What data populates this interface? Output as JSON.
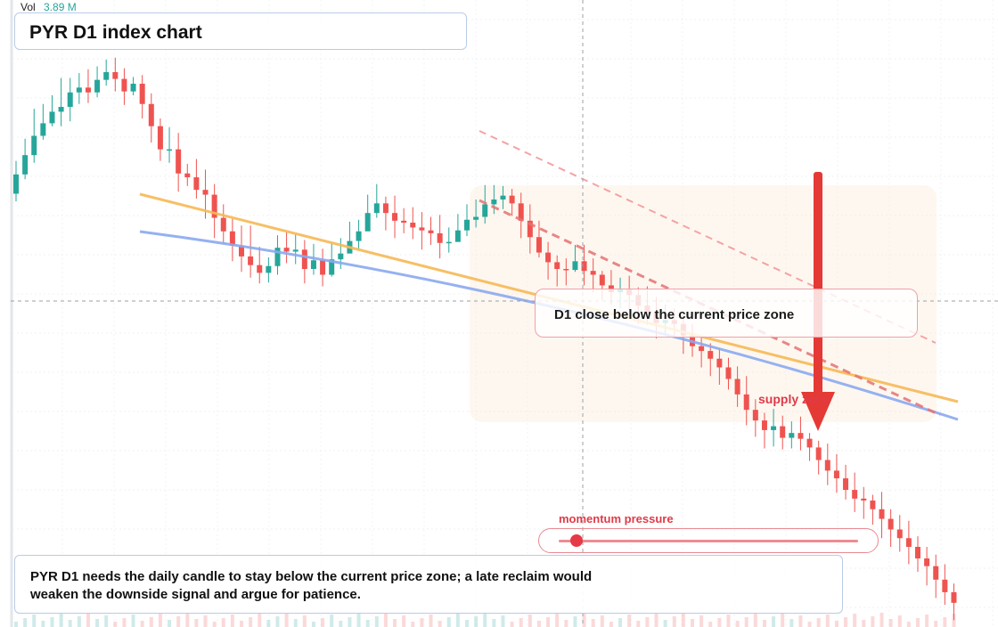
{
  "header": {
    "vol_label": "Vol",
    "vol_value": "3.89 M"
  },
  "title": "PYR D1 index chart",
  "annotations": {
    "callout": "D1 close below the current price zone",
    "supply_label": "supply zone",
    "momentum_label": "momentum pressure",
    "momentum_level": 0.06,
    "note": "PYR D1 needs the daily candle to stay below the current price zone; a late reclaim would weaken the downside signal and argue for patience."
  },
  "colors": {
    "up": "#26a69a",
    "down": "#ef5350",
    "trend_orange": "#f7b955",
    "trend_blue": "#8aa8f0",
    "channel_red": "#e57373",
    "arrow_red": "#e53935",
    "supply_zone": "#fdebd8"
  },
  "chart_data": {
    "type": "candlestick",
    "title": "PYR D1 index chart",
    "timeframe": "D1",
    "symbol": "PYR",
    "volume_readout": "3.89 M",
    "grid": true,
    "crosshair": true,
    "candles": [
      [
        100.0,
        102.0,
        103.4,
        99.2
      ],
      [
        102.0,
        104.0,
        105.7,
        101.5
      ],
      [
        104.0,
        106.0,
        108.8,
        103.2
      ],
      [
        106.0,
        107.3,
        109.3,
        105.6
      ],
      [
        107.3,
        108.5,
        110.2,
        107.0
      ],
      [
        108.5,
        109.0,
        112.0,
        107.0
      ],
      [
        109.0,
        110.5,
        112.0,
        107.5
      ],
      [
        110.5,
        111.0,
        112.5,
        109.3
      ],
      [
        111.0,
        110.5,
        112.9,
        109.4
      ],
      [
        110.5,
        111.8,
        113.2,
        110.0
      ],
      [
        111.8,
        112.6,
        113.9,
        111.2
      ],
      [
        112.6,
        111.9,
        114.1,
        110.6
      ],
      [
        111.9,
        110.6,
        113.0,
        109.2
      ],
      [
        110.6,
        111.4,
        112.1,
        110.2
      ],
      [
        111.4,
        109.3,
        112.3,
        107.8
      ],
      [
        109.3,
        107.0,
        110.4,
        105.3
      ],
      [
        107.0,
        104.6,
        107.8,
        103.4
      ],
      [
        104.6,
        104.6,
        106.9,
        103.2
      ],
      [
        104.6,
        102.1,
        106.3,
        100.2
      ],
      [
        102.1,
        101.7,
        103.1,
        100.8
      ],
      [
        101.7,
        100.4,
        103.6,
        99.5
      ],
      [
        100.4,
        99.9,
        102.5,
        97.4
      ],
      [
        99.9,
        97.5,
        101.0,
        95.4
      ],
      [
        97.5,
        96.1,
        98.9,
        94.8
      ],
      [
        96.1,
        94.6,
        97.4,
        93.0
      ],
      [
        94.6,
        93.5,
        96.7,
        91.9
      ],
      [
        93.5,
        92.6,
        96.7,
        91.3
      ],
      [
        92.6,
        91.8,
        94.5,
        90.7
      ],
      [
        91.8,
        92.5,
        93.4,
        90.8
      ],
      [
        92.5,
        94.4,
        95.7,
        91.6
      ],
      [
        94.4,
        94.0,
        96.0,
        92.8
      ],
      [
        94.0,
        94.2,
        95.8,
        92.7
      ],
      [
        94.2,
        92.2,
        95.2,
        90.7
      ],
      [
        92.2,
        93.1,
        94.8,
        91.6
      ],
      [
        93.1,
        91.6,
        94.3,
        90.4
      ],
      [
        91.6,
        93.2,
        94.9,
        91.4
      ],
      [
        93.2,
        93.8,
        95.4,
        92.2
      ],
      [
        93.8,
        95.1,
        97.1,
        93.9
      ],
      [
        95.1,
        96.1,
        97.3,
        94.2
      ],
      [
        96.1,
        98.0,
        99.9,
        96.5
      ],
      [
        98.0,
        99.0,
        101.0,
        97.5
      ],
      [
        99.0,
        98.0,
        99.7,
        96.2
      ],
      [
        98.0,
        97.2,
        99.8,
        95.4
      ],
      [
        97.2,
        97.0,
        98.5,
        95.9
      ],
      [
        97.0,
        96.5,
        98.6,
        95.3
      ],
      [
        96.5,
        96.2,
        98.1,
        94.2
      ],
      [
        96.2,
        95.9,
        97.6,
        94.7
      ],
      [
        95.9,
        94.9,
        97.8,
        93.3
      ],
      [
        94.9,
        95.0,
        96.5,
        93.9
      ],
      [
        95.0,
        96.2,
        97.9,
        95.1
      ],
      [
        96.2,
        97.3,
        98.9,
        95.6
      ],
      [
        97.3,
        97.6,
        99.4,
        96.5
      ],
      [
        97.6,
        98.9,
        100.9,
        96.9
      ],
      [
        98.9,
        99.4,
        100.9,
        97.9
      ],
      [
        99.4,
        99.8,
        100.8,
        98.4
      ],
      [
        99.8,
        99.0,
        100.5,
        97.7
      ],
      [
        99.0,
        97.2,
        100.1,
        95.4
      ],
      [
        97.2,
        95.5,
        98.9,
        93.8
      ],
      [
        95.5,
        93.9,
        97.2,
        93.4
      ],
      [
        93.9,
        92.9,
        95.0,
        91.1
      ],
      [
        92.9,
        92.2,
        93.6,
        90.4
      ],
      [
        92.2,
        92.1,
        93.3,
        90.5
      ],
      [
        92.1,
        93.0,
        94.7,
        91.9
      ],
      [
        93.0,
        92.0,
        94.7,
        90.5
      ],
      [
        92.0,
        91.6,
        93.3,
        89.8
      ],
      [
        91.6,
        90.5,
        92.0,
        89.0
      ],
      [
        90.5,
        89.8,
        92.1,
        88.5
      ],
      [
        89.8,
        90.1,
        91.3,
        88.1
      ],
      [
        90.1,
        89.5,
        91.5,
        87.9
      ],
      [
        89.5,
        88.4,
        90.3,
        86.5
      ],
      [
        88.4,
        87.6,
        90.4,
        86.4
      ],
      [
        87.6,
        86.6,
        89.3,
        85.0
      ],
      [
        86.6,
        86.9,
        88.5,
        85.3
      ],
      [
        86.9,
        86.5,
        88.1,
        85.1
      ],
      [
        86.5,
        85.3,
        87.4,
        83.4
      ],
      [
        85.3,
        84.2,
        86.5,
        83.1
      ],
      [
        84.2,
        83.7,
        85.3,
        82.0
      ],
      [
        83.7,
        82.9,
        84.5,
        81.1
      ],
      [
        82.9,
        82.0,
        83.9,
        80.2
      ],
      [
        82.0,
        80.8,
        83.0,
        79.7
      ],
      [
        80.8,
        79.2,
        82.1,
        77.9
      ],
      [
        79.2,
        77.6,
        81.1,
        76.0
      ],
      [
        77.6,
        76.5,
        78.7,
        74.8
      ],
      [
        76.5,
        75.5,
        77.3,
        73.6
      ],
      [
        75.5,
        75.9,
        77.7,
        73.8
      ],
      [
        75.9,
        74.7,
        77.0,
        73.5
      ],
      [
        74.7,
        75.2,
        76.4,
        73.6
      ],
      [
        75.2,
        74.6,
        76.9,
        73.4
      ],
      [
        74.6,
        73.7,
        75.2,
        72.3
      ],
      [
        73.7,
        72.4,
        74.4,
        70.9
      ],
      [
        72.4,
        71.3,
        74.1,
        69.8
      ],
      [
        71.3,
        70.5,
        73.0,
        69.0
      ],
      [
        70.5,
        69.3,
        71.9,
        68.3
      ],
      [
        69.3,
        68.4,
        71.1,
        67.0
      ],
      [
        68.4,
        68.2,
        69.6,
        66.3
      ],
      [
        68.2,
        67.3,
        68.8,
        65.7
      ],
      [
        67.3,
        66.3,
        69.1,
        64.3
      ],
      [
        66.3,
        65.2,
        67.3,
        63.4
      ],
      [
        65.2,
        64.3,
        66.7,
        62.9
      ],
      [
        64.3,
        63.4,
        66.1,
        61.6
      ],
      [
        63.4,
        62.2,
        64.5,
        60.8
      ],
      [
        62.2,
        61.4,
        63.4,
        59.4
      ],
      [
        61.4,
        60.0,
        62.6,
        58.1
      ],
      [
        60.0,
        58.7,
        61.6,
        57.4
      ],
      [
        58.7,
        57.6,
        59.6,
        55.8
      ]
    ],
    "trendlines": [
      {
        "name": "",
        "color": "orange",
        "style": "solid"
      },
      {
        "name": "",
        "color": "blue",
        "style": "solid"
      },
      {
        "name": "",
        "color": "red",
        "style": "dashed"
      },
      {
        "name": "",
        "color": "light-red",
        "style": "dashed"
      }
    ],
    "signal": "down"
  }
}
